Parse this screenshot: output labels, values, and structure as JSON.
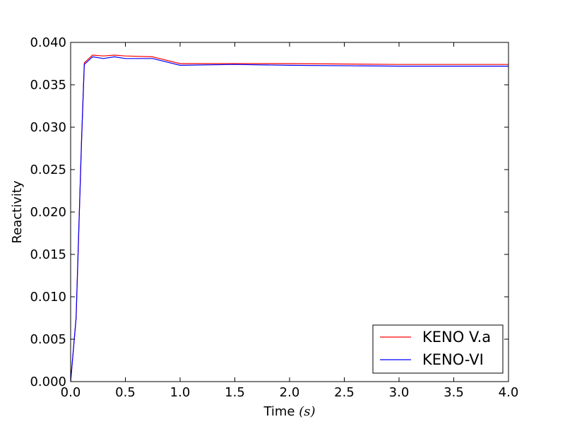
{
  "chart_data": {
    "type": "line",
    "title": "",
    "xlabel": "Time ",
    "xlabel_math": "(s)",
    "ylabel": "Reactivity",
    "xlim": [
      0.0,
      4.0
    ],
    "ylim": [
      0.0,
      0.04
    ],
    "x_ticks": [
      0.0,
      0.5,
      1.0,
      1.5,
      2.0,
      2.5,
      3.0,
      3.5,
      4.0
    ],
    "x_tick_labels": [
      "0.0",
      "0.5",
      "1.0",
      "1.5",
      "2.0",
      "2.5",
      "3.0",
      "3.5",
      "4.0"
    ],
    "y_ticks": [
      0.0,
      0.005,
      0.01,
      0.015,
      0.02,
      0.025,
      0.03,
      0.035,
      0.04
    ],
    "y_tick_labels": [
      "0.000",
      "0.005",
      "0.010",
      "0.015",
      "0.020",
      "0.025",
      "0.030",
      "0.035",
      "0.040"
    ],
    "grid": false,
    "legend_position": "lower-right",
    "series": [
      {
        "name": "KENO V.a",
        "color": "#ff0000",
        "x": [
          0.0,
          0.05,
          0.1,
          0.125,
          0.2,
          0.3,
          0.4,
          0.5,
          0.75,
          1.0,
          1.5,
          2.0,
          3.0,
          4.0
        ],
        "y": [
          0.0,
          0.0075,
          0.0285,
          0.0376,
          0.0385,
          0.0384,
          0.0385,
          0.0384,
          0.0383,
          0.0375,
          0.0375,
          0.0375,
          0.0374,
          0.0374
        ]
      },
      {
        "name": "KENO-VI",
        "color": "#0000ff",
        "x": [
          0.0,
          0.05,
          0.1,
          0.125,
          0.2,
          0.3,
          0.4,
          0.5,
          0.75,
          1.0,
          1.5,
          2.0,
          3.0,
          4.0
        ],
        "y": [
          0.0,
          0.0075,
          0.0285,
          0.0374,
          0.0383,
          0.0381,
          0.0383,
          0.0381,
          0.0381,
          0.0373,
          0.0374,
          0.0373,
          0.0372,
          0.0372
        ]
      }
    ]
  }
}
